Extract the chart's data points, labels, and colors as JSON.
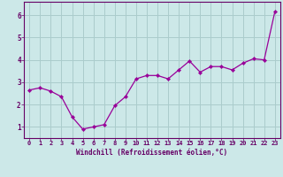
{
  "x": [
    0,
    1,
    2,
    3,
    4,
    5,
    6,
    7,
    8,
    9,
    10,
    11,
    12,
    13,
    14,
    15,
    16,
    17,
    18,
    19,
    20,
    21,
    22,
    23
  ],
  "y": [
    2.65,
    2.75,
    2.6,
    2.35,
    1.45,
    0.9,
    1.0,
    1.1,
    1.95,
    2.35,
    3.15,
    3.3,
    3.3,
    3.15,
    3.55,
    3.95,
    3.45,
    3.7,
    3.7,
    3.55,
    3.85,
    4.05,
    4.0,
    6.15
  ],
  "xlabel": "Windchill (Refroidissement éolien,°C)",
  "xticks": [
    0,
    1,
    2,
    3,
    4,
    5,
    6,
    7,
    8,
    9,
    10,
    11,
    12,
    13,
    14,
    15,
    16,
    17,
    18,
    19,
    20,
    21,
    22,
    23
  ],
  "yticks": [
    1,
    2,
    3,
    4,
    5,
    6
  ],
  "ylim": [
    0.5,
    6.6
  ],
  "xlim": [
    -0.5,
    23.5
  ],
  "line_color": "#990099",
  "marker_color": "#990099",
  "bg_color": "#cce8e8",
  "grid_color": "#aacccc",
  "axis_color": "#660066",
  "tick_color": "#660066",
  "label_color": "#660066",
  "tick_fontsize": 5.0,
  "xlabel_fontsize": 5.5
}
